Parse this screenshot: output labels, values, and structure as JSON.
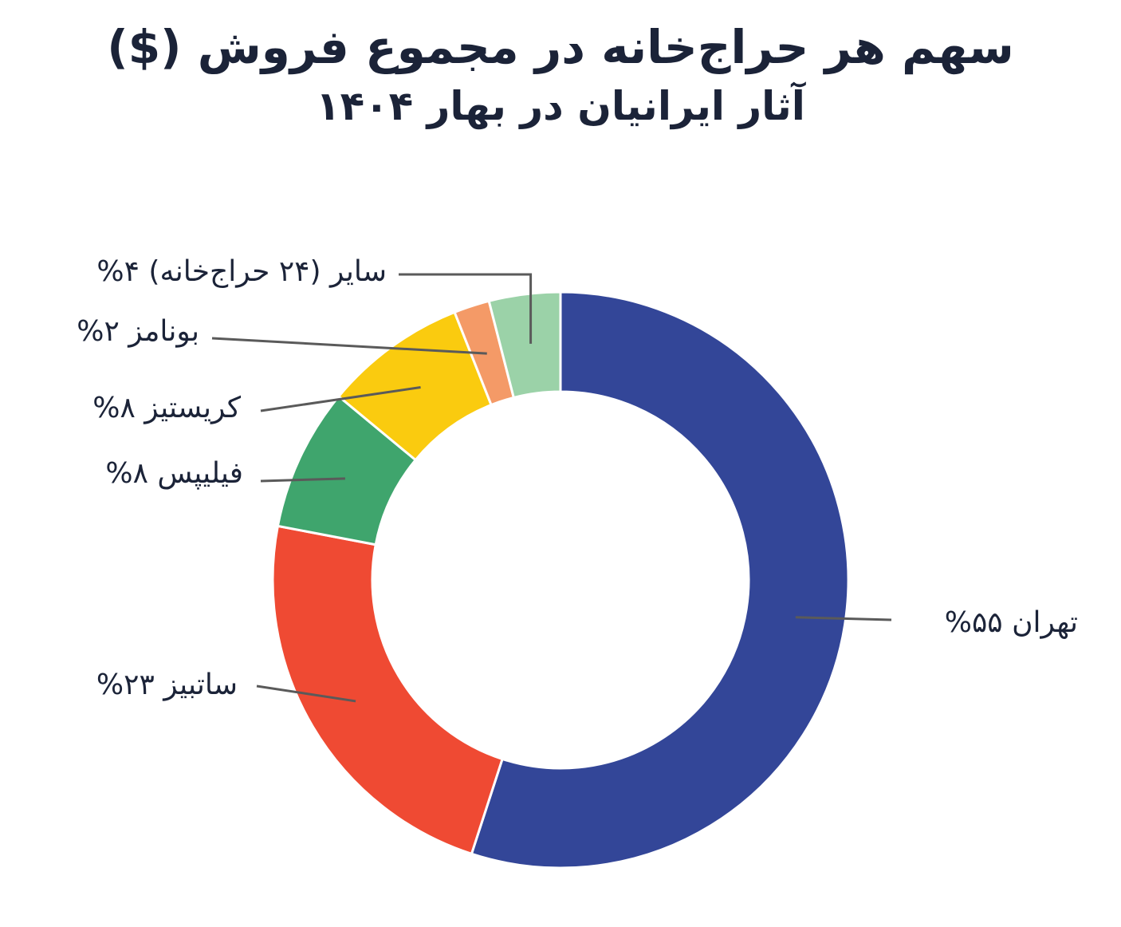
{
  "header": {
    "title": "سهم هر حراج‌خانه در مجموع فروش ($)",
    "subtitle": "آثار ایرانیان در بهار ۱۴۰۴"
  },
  "chart_data": {
    "type": "pie",
    "donut": true,
    "title": "سهم هر حراج‌خانه در مجموع فروش ($)",
    "subtitle": "آثار ایرانیان در بهار ۱۴۰۴",
    "unit": "%",
    "slices": [
      {
        "name": "تهران",
        "value": 55,
        "label": "تهران  ۵۵%",
        "color": "#334698"
      },
      {
        "name": "ساتبیز",
        "value": 23,
        "label": "ساتبیز  ۲۳%",
        "color": "#ef4a33"
      },
      {
        "name": "فیلیپس",
        "value": 8,
        "label": "فیلیپس  ۸%",
        "color": "#3fa56d"
      },
      {
        "name": "کریستیز",
        "value": 8,
        "label": "کریستیز  ۸%",
        "color": "#facb0f"
      },
      {
        "name": "بونامز",
        "value": 2,
        "label": "بونامز  ۲%",
        "color": "#f49a67"
      },
      {
        "name": "سایر (۲۴ حراج‌خانه)",
        "value": 4,
        "label": "سایر (۲۴ حراج‌خانه)  ۴%",
        "color": "#9bd2a8"
      }
    ],
    "start": "top",
    "direction": "clockwise",
    "separator_color": "#ffffff",
    "leader_line_color": "#5a5a5a",
    "legend": "none"
  }
}
